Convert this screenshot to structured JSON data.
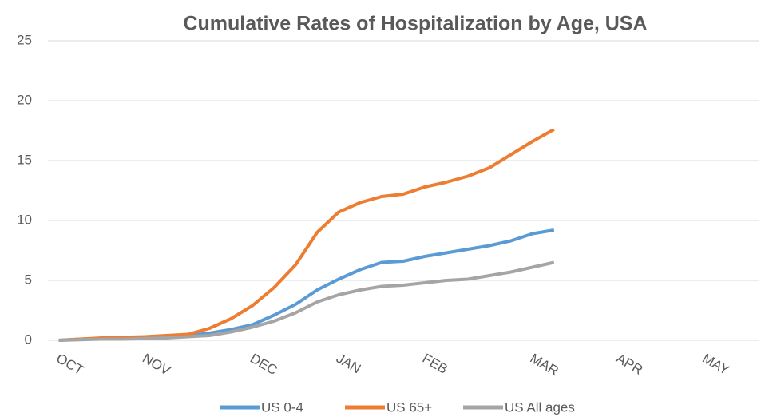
{
  "chart_data": {
    "type": "line",
    "title": "Cumulative Rates of Hospitalization by Age, USA",
    "categories": [
      "OCT",
      null,
      null,
      null,
      "NOV",
      null,
      null,
      null,
      null,
      "DEC",
      null,
      null,
      null,
      "JAN",
      null,
      null,
      null,
      "FEB",
      null,
      null,
      null,
      null,
      "MAR",
      null,
      null,
      null,
      "APR",
      null,
      null,
      null,
      "MAY",
      null,
      null
    ],
    "series": [
      {
        "name": "US 0-4",
        "color": "#5b9bd5",
        "values": [
          0,
          0.1,
          0.15,
          0.2,
          0.25,
          0.3,
          0.4,
          0.6,
          0.9,
          1.3,
          2.1,
          3.0,
          4.2,
          5.1,
          5.9,
          6.5,
          6.6,
          7.0,
          7.3,
          7.6,
          7.9,
          8.3,
          8.9,
          9.2,
          null,
          null,
          null,
          null,
          null,
          null,
          null,
          null,
          null
        ]
      },
      {
        "name": "US 65+",
        "color": "#ed7d31",
        "values": [
          0,
          0.1,
          0.2,
          0.25,
          0.3,
          0.4,
          0.5,
          1.0,
          1.8,
          2.9,
          4.4,
          6.3,
          9.0,
          10.7,
          11.5,
          12.0,
          12.2,
          12.8,
          13.2,
          13.7,
          14.4,
          15.5,
          16.6,
          17.6,
          null,
          null,
          null,
          null,
          null,
          null,
          null,
          null,
          null
        ]
      },
      {
        "name": "US All ages",
        "color": "#a5a5a5",
        "values": [
          0,
          0.05,
          0.1,
          0.1,
          0.15,
          0.2,
          0.3,
          0.4,
          0.7,
          1.1,
          1.6,
          2.3,
          3.2,
          3.8,
          4.2,
          4.5,
          4.6,
          4.8,
          5.0,
          5.1,
          5.4,
          5.7,
          6.1,
          6.5,
          null,
          null,
          null,
          null,
          null,
          null,
          null,
          null,
          null
        ]
      }
    ],
    "ylim": [
      0,
      25
    ],
    "yticks": [
      0,
      5,
      10,
      15,
      20,
      25
    ],
    "grid": true
  }
}
